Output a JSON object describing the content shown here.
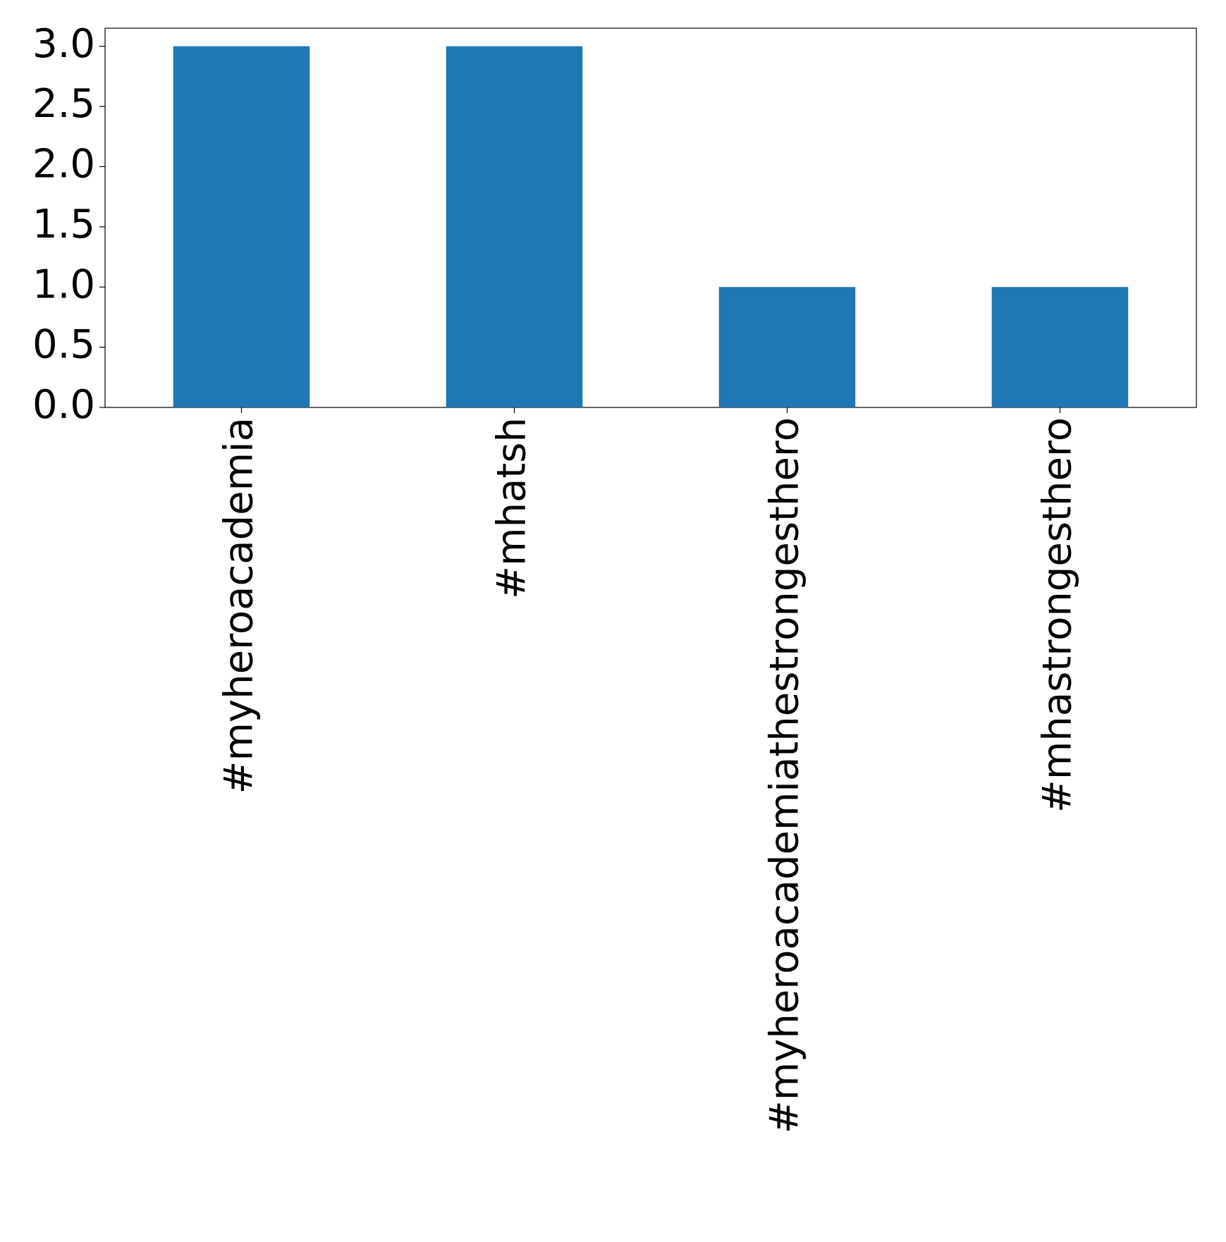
{
  "chart_data": {
    "type": "bar",
    "categories": [
      "#myheroacademia",
      "#mhatsh",
      "#myheroacademiathestrongesthero",
      "#mhastrongesthero"
    ],
    "values": [
      3,
      3,
      1,
      1
    ],
    "color": "#1f77b4",
    "ylim": [
      0,
      3.15
    ],
    "yticks": [
      {
        "value": 0,
        "label": "0.0"
      },
      0.5,
      {
        "value": 1,
        "label": "1.0"
      },
      1.5,
      {
        "value": 2,
        "label": "2.0"
      },
      2.5,
      {
        "value": 3,
        "label": "3.0"
      }
    ],
    "grid": false
  }
}
